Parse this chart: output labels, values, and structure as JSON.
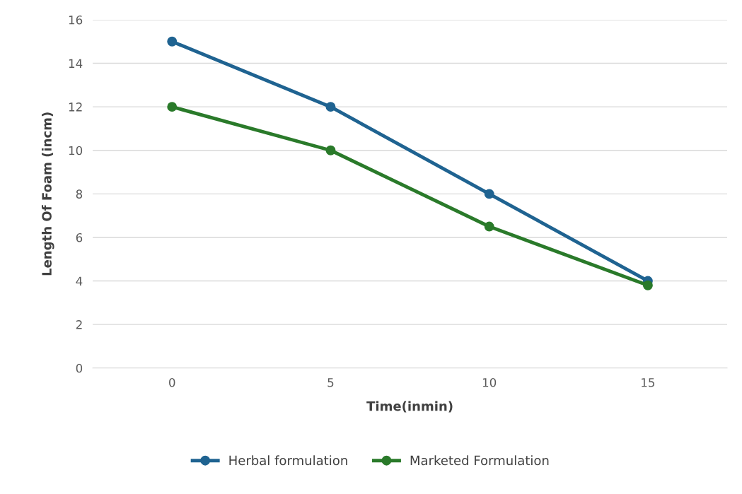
{
  "chart_data": {
    "type": "line",
    "xlabel": "Time(inmin)",
    "ylabel": "Length Of Foam (incm)",
    "categories": [
      "0",
      "5",
      "10",
      "15"
    ],
    "series": [
      {
        "name": "Herbal formulation",
        "color": "#1f6391",
        "values": [
          15,
          12,
          8,
          4
        ]
      },
      {
        "name": "Marketed Formulation",
        "color": "#2a7a2a",
        "values": [
          12,
          10,
          6.5,
          3.8
        ]
      }
    ],
    "ylim": [
      0,
      16
    ],
    "yticks": [
      0,
      2,
      4,
      6,
      8,
      10,
      12,
      14,
      16
    ],
    "grid": "y",
    "legend": "bottom",
    "marker": "circle",
    "line_style": "solid"
  }
}
